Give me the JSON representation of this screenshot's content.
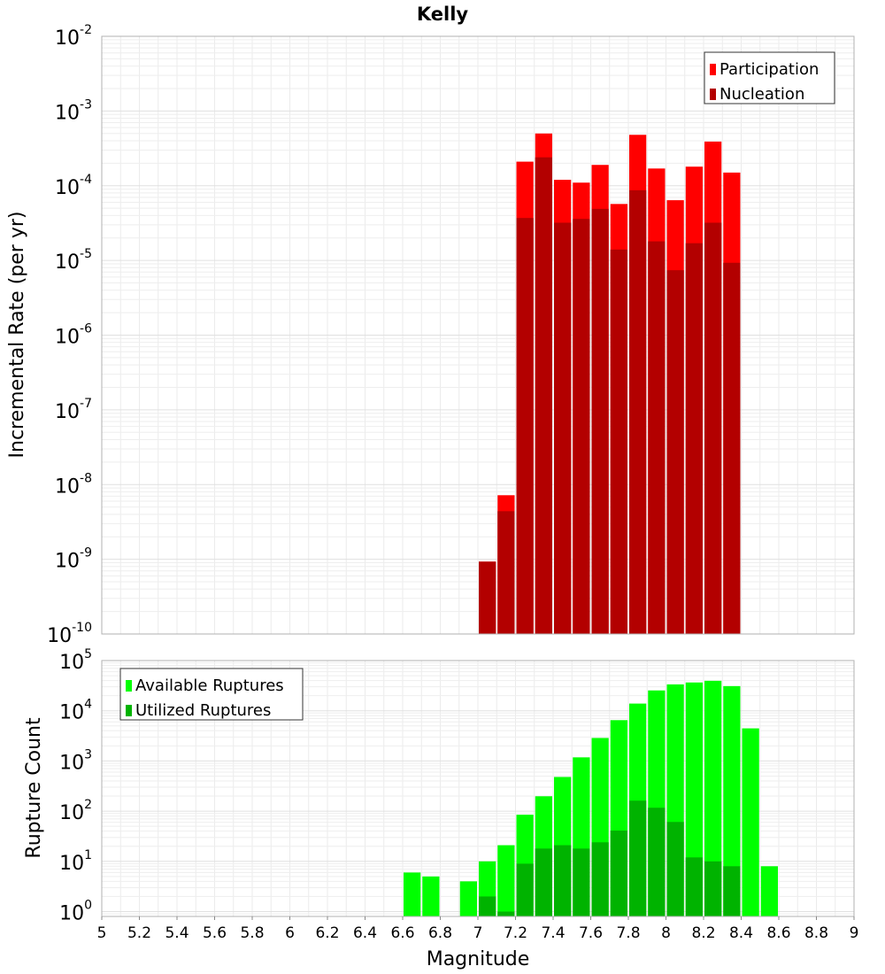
{
  "chart_data": [
    {
      "type": "bar",
      "title": "Kelly",
      "xlabel": "",
      "ylabel": "Incremental Rate (per yr)",
      "yscale": "log",
      "ylim": [
        1e-10,
        0.01
      ],
      "xlim": [
        5,
        9
      ],
      "grid": true,
      "legend_position": "top-right",
      "ytick_exponents": [
        -10,
        -9,
        -8,
        -7,
        -6,
        -5,
        -4,
        -3,
        -2
      ],
      "ytick_base": "10",
      "x": [
        7.05,
        7.15,
        7.25,
        7.35,
        7.45,
        7.55,
        7.65,
        7.75,
        7.85,
        7.95,
        8.05,
        8.15,
        8.25,
        8.35
      ],
      "series": [
        {
          "name": "Participation",
          "color": "#ff0000",
          "values": [
            9.3e-10,
            7.2e-09,
            0.00021,
            0.0005,
            0.00012,
            0.00011,
            0.00019,
            5.7e-05,
            0.00048,
            0.00017,
            6.4e-05,
            0.00018,
            0.00039,
            0.00015
          ]
        },
        {
          "name": "Nucleation",
          "color": "#b30000",
          "values": [
            9.3e-10,
            4.4e-09,
            3.7e-05,
            0.00024,
            3.2e-05,
            3.6e-05,
            4.9e-05,
            1.4e-05,
            8.7e-05,
            1.8e-05,
            7.4e-06,
            1.7e-05,
            3.2e-05,
            9.3e-06
          ]
        }
      ]
    },
    {
      "type": "bar",
      "title": "",
      "xlabel": "Magnitude",
      "ylabel": "Rupture Count",
      "yscale": "log",
      "ylim": [
        0.8,
        100000.0
      ],
      "xlim": [
        5,
        9
      ],
      "grid": true,
      "legend_position": "top-left",
      "ytick_exponents": [
        0,
        1,
        2,
        3,
        4,
        5
      ],
      "ytick_base": "10",
      "xticks": [
        "5",
        "5.2",
        "5.4",
        "5.6",
        "5.8",
        "6",
        "6.2",
        "6.4",
        "6.6",
        "6.8",
        "7",
        "7.2",
        "7.4",
        "7.6",
        "7.8",
        "8",
        "8.2",
        "8.4",
        "8.6",
        "8.8",
        "9"
      ],
      "x": [
        6.65,
        6.75,
        6.95,
        7.05,
        7.15,
        7.25,
        7.35,
        7.45,
        7.55,
        7.65,
        7.75,
        7.85,
        7.95,
        8.05,
        8.15,
        8.25,
        8.35,
        8.45,
        8.55
      ],
      "series": [
        {
          "name": "Available Ruptures",
          "color": "#00ff00",
          "values": [
            6,
            5,
            4,
            10,
            21,
            85,
            198,
            480,
            1180,
            2870,
            6500,
            13900,
            25400,
            33500,
            36600,
            39500,
            31000,
            4460,
            8
          ]
        },
        {
          "name": "Utilized Ruptures",
          "color": "#00b300",
          "values": [
            0,
            0,
            0,
            2,
            1,
            9,
            18,
            21,
            18,
            24,
            41,
            162,
            117,
            61,
            12,
            10,
            8,
            0,
            0
          ]
        }
      ]
    }
  ]
}
